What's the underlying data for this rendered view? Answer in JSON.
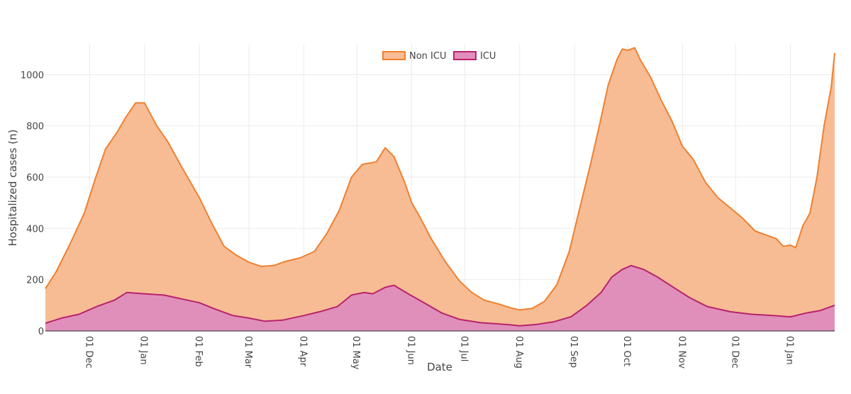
{
  "chart_data": {
    "type": "area",
    "title": "",
    "xlabel": "Date",
    "ylabel": "Hospitalized cases (n)",
    "ylim": [
      0,
      1120
    ],
    "y_ticks": [
      0,
      200,
      400,
      600,
      800,
      1000
    ],
    "x_range": [
      "2020-11-06",
      "2022-01-26"
    ],
    "x_ticks": [
      {
        "date": "2020-12-01",
        "label": "01 Dec"
      },
      {
        "date": "2021-01-01",
        "label": "01 Jan"
      },
      {
        "date": "2021-02-01",
        "label": "01 Feb"
      },
      {
        "date": "2021-03-01",
        "label": "01 Mar"
      },
      {
        "date": "2021-04-01",
        "label": "01 Apr"
      },
      {
        "date": "2021-05-01",
        "label": "01 May"
      },
      {
        "date": "2021-06-01",
        "label": "01 Jun"
      },
      {
        "date": "2021-07-01",
        "label": "01 Jul"
      },
      {
        "date": "2021-08-01",
        "label": "01 Aug"
      },
      {
        "date": "2021-09-01",
        "label": "01 Sep"
      },
      {
        "date": "2021-10-01",
        "label": "01 Oct"
      },
      {
        "date": "2021-11-01",
        "label": "01 Nov"
      },
      {
        "date": "2021-12-01",
        "label": "01 Dec"
      },
      {
        "date": "2022-01-01",
        "label": "01 Jan"
      }
    ],
    "legend_position": "top-center",
    "grid": true,
    "series": [
      {
        "name": "Non ICU",
        "line_color": "#f08030",
        "fill_color": "#f7bc94",
        "points": [
          [
            "2020-11-06",
            165
          ],
          [
            "2020-11-12",
            230
          ],
          [
            "2020-11-20",
            340
          ],
          [
            "2020-11-28",
            460
          ],
          [
            "2020-12-04",
            590
          ],
          [
            "2020-12-10",
            710
          ],
          [
            "2020-12-16",
            770
          ],
          [
            "2020-12-22",
            840
          ],
          [
            "2020-12-27",
            890
          ],
          [
            "2021-01-01",
            890
          ],
          [
            "2021-01-08",
            800
          ],
          [
            "2021-01-14",
            740
          ],
          [
            "2021-01-22",
            640
          ],
          [
            "2021-02-01",
            520
          ],
          [
            "2021-02-08",
            420
          ],
          [
            "2021-02-15",
            330
          ],
          [
            "2021-02-22",
            295
          ],
          [
            "2021-03-01",
            268
          ],
          [
            "2021-03-08",
            252
          ],
          [
            "2021-03-15",
            255
          ],
          [
            "2021-03-22",
            272
          ],
          [
            "2021-03-30",
            285
          ],
          [
            "2021-04-07",
            310
          ],
          [
            "2021-04-14",
            380
          ],
          [
            "2021-04-21",
            470
          ],
          [
            "2021-04-28",
            600
          ],
          [
            "2021-05-04",
            650
          ],
          [
            "2021-05-12",
            660
          ],
          [
            "2021-05-17",
            715
          ],
          [
            "2021-05-22",
            680
          ],
          [
            "2021-05-28",
            580
          ],
          [
            "2021-06-01",
            500
          ],
          [
            "2021-06-06",
            440
          ],
          [
            "2021-06-12",
            360
          ],
          [
            "2021-06-20",
            270
          ],
          [
            "2021-06-28",
            195
          ],
          [
            "2021-07-05",
            150
          ],
          [
            "2021-07-12",
            120
          ],
          [
            "2021-07-20",
            105
          ],
          [
            "2021-07-27",
            90
          ],
          [
            "2021-08-01",
            82
          ],
          [
            "2021-08-08",
            88
          ],
          [
            "2021-08-15",
            115
          ],
          [
            "2021-08-22",
            180
          ],
          [
            "2021-08-29",
            310
          ],
          [
            "2021-09-04",
            480
          ],
          [
            "2021-09-10",
            650
          ],
          [
            "2021-09-15",
            800
          ],
          [
            "2021-09-20",
            960
          ],
          [
            "2021-09-25",
            1060
          ],
          [
            "2021-09-28",
            1100
          ],
          [
            "2021-10-01",
            1095
          ],
          [
            "2021-10-05",
            1105
          ],
          [
            "2021-10-08",
            1060
          ],
          [
            "2021-10-14",
            990
          ],
          [
            "2021-10-20",
            900
          ],
          [
            "2021-10-26",
            820
          ],
          [
            "2021-11-01",
            720
          ],
          [
            "2021-11-07",
            670
          ],
          [
            "2021-11-14",
            580
          ],
          [
            "2021-11-21",
            520
          ],
          [
            "2021-11-28",
            480
          ],
          [
            "2021-12-05",
            440
          ],
          [
            "2021-12-12",
            390
          ],
          [
            "2021-12-18",
            375
          ],
          [
            "2021-12-24",
            360
          ],
          [
            "2021-12-28",
            330
          ],
          [
            "2022-01-01",
            335
          ],
          [
            "2022-01-04",
            325
          ],
          [
            "2022-01-08",
            410
          ],
          [
            "2022-01-12",
            460
          ],
          [
            "2022-01-16",
            600
          ],
          [
            "2022-01-20",
            800
          ],
          [
            "2022-01-24",
            950
          ],
          [
            "2022-01-26",
            1085
          ]
        ]
      },
      {
        "name": "ICU",
        "line_color": "#b8236c",
        "fill_color": "#e08fba",
        "points": [
          [
            "2020-11-06",
            30
          ],
          [
            "2020-11-15",
            50
          ],
          [
            "2020-11-25",
            65
          ],
          [
            "2020-12-05",
            95
          ],
          [
            "2020-12-15",
            120
          ],
          [
            "2020-12-22",
            150
          ],
          [
            "2021-01-01",
            145
          ],
          [
            "2021-01-12",
            140
          ],
          [
            "2021-01-22",
            125
          ],
          [
            "2021-02-01",
            110
          ],
          [
            "2021-02-10",
            85
          ],
          [
            "2021-02-20",
            60
          ],
          [
            "2021-03-01",
            50
          ],
          [
            "2021-03-10",
            38
          ],
          [
            "2021-03-20",
            42
          ],
          [
            "2021-04-01",
            60
          ],
          [
            "2021-04-10",
            75
          ],
          [
            "2021-04-20",
            95
          ],
          [
            "2021-04-28",
            140
          ],
          [
            "2021-05-05",
            150
          ],
          [
            "2021-05-10",
            145
          ],
          [
            "2021-05-17",
            170
          ],
          [
            "2021-05-22",
            178
          ],
          [
            "2021-05-30",
            145
          ],
          [
            "2021-06-08",
            110
          ],
          [
            "2021-06-18",
            70
          ],
          [
            "2021-06-28",
            45
          ],
          [
            "2021-07-10",
            32
          ],
          [
            "2021-07-25",
            25
          ],
          [
            "2021-08-01",
            20
          ],
          [
            "2021-08-10",
            25
          ],
          [
            "2021-08-20",
            35
          ],
          [
            "2021-08-30",
            55
          ],
          [
            "2021-09-08",
            100
          ],
          [
            "2021-09-16",
            150
          ],
          [
            "2021-09-22",
            210
          ],
          [
            "2021-09-28",
            240
          ],
          [
            "2021-10-03",
            255
          ],
          [
            "2021-10-10",
            240
          ],
          [
            "2021-10-18",
            210
          ],
          [
            "2021-10-28",
            165
          ],
          [
            "2021-11-05",
            130
          ],
          [
            "2021-11-15",
            95
          ],
          [
            "2021-11-28",
            75
          ],
          [
            "2021-12-10",
            65
          ],
          [
            "2021-12-22",
            60
          ],
          [
            "2022-01-01",
            55
          ],
          [
            "2022-01-10",
            70
          ],
          [
            "2022-01-18",
            80
          ],
          [
            "2022-01-26",
            100
          ]
        ]
      }
    ]
  }
}
